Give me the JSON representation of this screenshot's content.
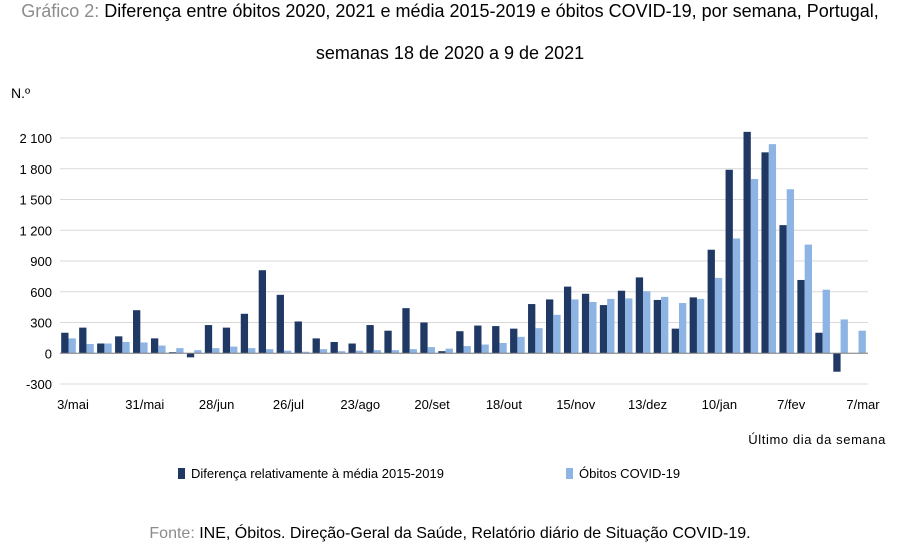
{
  "title_prefix": "Gráfico 2:",
  "title_line1": "Diferença entre óbitos 2020, 2021 e média 2015-2019 e óbitos COVID-19, por semana, Portugal,",
  "title_line2": "semanas 18 de 2020 a 9 de 2021",
  "unit_label": "N.º",
  "source_prefix": "Fonte:",
  "source_text": "INE, Óbitos. Direção-Geral da Saúde, Relatório diário de Situação COVID-19.",
  "chart_data": {
    "type": "bar",
    "title": "Diferença entre óbitos 2020, 2021 e média 2015-2019 e óbitos COVID-19, por semana, Portugal, semanas 18 de 2020 a 9 de 2021",
    "xlabel": "Último dia da semana",
    "ylabel": "N.º",
    "ylim": [
      -300,
      2100
    ],
    "yticks": [
      -300,
      0,
      300,
      600,
      900,
      1200,
      1500,
      1800,
      2100
    ],
    "ytick_labels": [
      "-300",
      "0",
      "300",
      "600",
      "900",
      "1 200",
      "1 500",
      "1 800",
      "2 100"
    ],
    "x_tick_labels": [
      {
        "index": 0,
        "label": "3/mai"
      },
      {
        "index": 4,
        "label": "31/mai"
      },
      {
        "index": 8,
        "label": "28/jun"
      },
      {
        "index": 12,
        "label": "26/jul"
      },
      {
        "index": 16,
        "label": "23/ago"
      },
      {
        "index": 20,
        "label": "20/set"
      },
      {
        "index": 24,
        "label": "18/out"
      },
      {
        "index": 28,
        "label": "15/nov"
      },
      {
        "index": 32,
        "label": "13/dez"
      },
      {
        "index": 36,
        "label": "10/jan"
      },
      {
        "index": 40,
        "label": "7/fev"
      },
      {
        "index": 44,
        "label": "7/mar"
      }
    ],
    "grid": true,
    "legend_position": "bottom",
    "series": [
      {
        "name": "Diferença relativamente à média 2015-2019",
        "color": "#1f3864",
        "values": [
          200,
          250,
          95,
          165,
          420,
          145,
          10,
          -40,
          275,
          250,
          385,
          810,
          570,
          310,
          145,
          110,
          95,
          275,
          220,
          440,
          300,
          20,
          215,
          270,
          265,
          240,
          480,
          525,
          650,
          580,
          470,
          610,
          740,
          520,
          240,
          545,
          1010,
          1790,
          2160,
          1960,
          1250,
          715,
          200,
          -180,
          0
        ]
      },
      {
        "name": "Óbitos COVID-19",
        "color": "#8db4e2",
        "values": [
          145,
          90,
          95,
          110,
          105,
          75,
          50,
          30,
          50,
          65,
          50,
          40,
          25,
          15,
          40,
          20,
          25,
          30,
          30,
          40,
          60,
          45,
          70,
          85,
          100,
          160,
          245,
          375,
          525,
          500,
          530,
          535,
          605,
          550,
          490,
          530,
          735,
          1120,
          1700,
          2040,
          1600,
          1060,
          620,
          330,
          220
        ]
      }
    ]
  }
}
